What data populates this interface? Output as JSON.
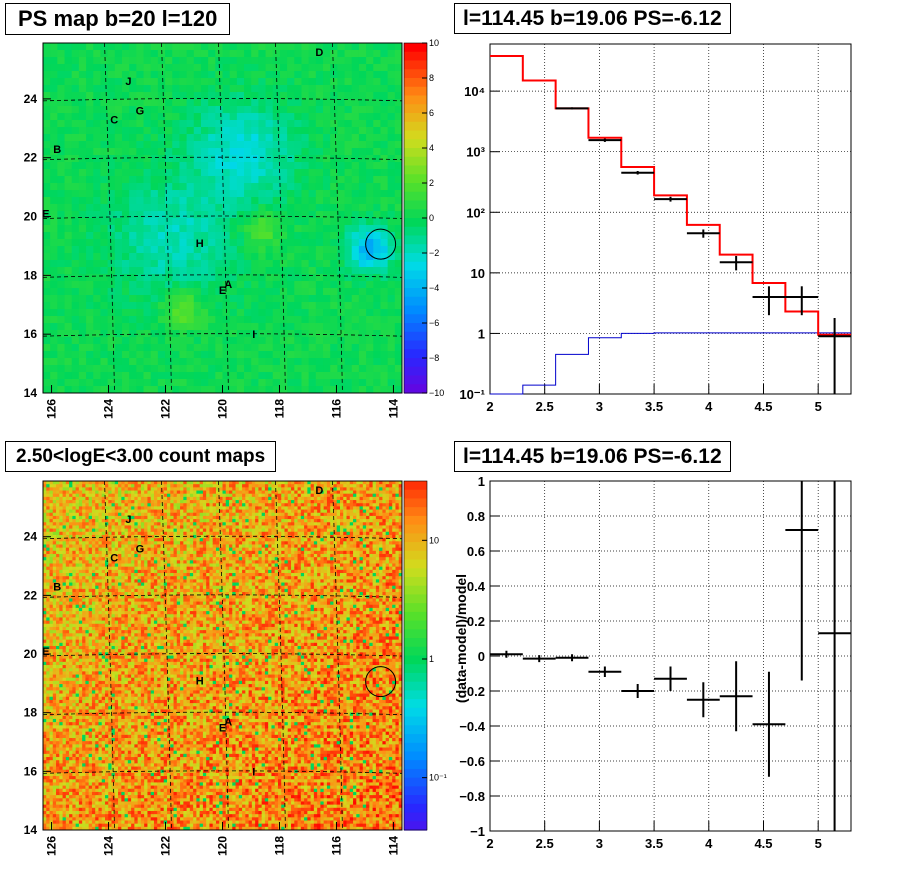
{
  "panels": {
    "ps_map": {
      "title": "PS map b=20 l=120",
      "x_ticks": [
        "126",
        "124",
        "122",
        "120",
        "118",
        "116",
        "114"
      ],
      "y_ticks": [
        "24",
        "22",
        "20",
        "18",
        "16",
        "14"
      ],
      "colorbar_ticks": [
        "10",
        "8",
        "6",
        "4",
        "2",
        "0",
        "−2",
        "−4",
        "−6",
        "−8",
        "−10"
      ],
      "markers": [
        "D",
        "J",
        "G",
        "C",
        "B",
        "E",
        "H",
        "A",
        "E",
        "I"
      ]
    },
    "spectrum": {
      "title": "l=114.45 b=19.06 PS=-6.12",
      "x_ticks": [
        "2",
        "2.5",
        "3",
        "3.5",
        "4",
        "4.5",
        "5"
      ],
      "y_ticks": [
        "10⁴",
        "10³",
        "10²",
        "10",
        "1",
        "10⁻¹"
      ]
    },
    "count_map": {
      "title": "2.50<logE<3.00 count maps",
      "x_ticks": [
        "126",
        "124",
        "122",
        "120",
        "118",
        "116",
        "114"
      ],
      "y_ticks": [
        "24",
        "22",
        "20",
        "18",
        "16",
        "14"
      ],
      "colorbar_ticks": [
        "10",
        "1",
        "10⁻¹"
      ],
      "markers": [
        "D",
        "J",
        "G",
        "C",
        "B",
        "E",
        "H",
        "A",
        "E",
        "I"
      ]
    },
    "residual": {
      "title": "l=114.45 b=19.06 PS=-6.12",
      "ylabel": "(data-model)/model",
      "x_ticks": [
        "2",
        "2.5",
        "3",
        "3.5",
        "4",
        "4.5",
        "5"
      ],
      "y_ticks": [
        "1",
        "0.8",
        "0.6",
        "0.4",
        "0.2",
        "0",
        "−0.2",
        "−0.4",
        "−0.6",
        "−0.8",
        "−1"
      ]
    }
  },
  "colors": {
    "model": "#ff0000",
    "background": "#0000cc",
    "data": "#000000"
  },
  "chart_data": [
    {
      "type": "heatmap",
      "title": "PS map b=20 l=120",
      "xlabel": "",
      "ylabel": "",
      "xlim": [
        126.3,
        113.7
      ],
      "ylim": [
        14,
        25.9
      ],
      "zlim": [
        -10,
        10
      ],
      "grid": true,
      "source_circle": {
        "l": 114.45,
        "b": 19.06
      },
      "labeled_sources": [
        {
          "name": "D",
          "l": 116.6,
          "b": 25.6
        },
        {
          "name": "J",
          "l": 123.3,
          "b": 24.6
        },
        {
          "name": "G",
          "l": 122.9,
          "b": 23.6
        },
        {
          "name": "C",
          "l": 123.8,
          "b": 23.3
        },
        {
          "name": "B",
          "l": 125.8,
          "b": 22.3
        },
        {
          "name": "E",
          "l": 126.2,
          "b": 20.1
        },
        {
          "name": "H",
          "l": 120.8,
          "b": 19.1
        },
        {
          "name": "A",
          "l": 119.8,
          "b": 17.7
        },
        {
          "name": "E",
          "l": 120.0,
          "b": 17.5
        },
        {
          "name": "I",
          "l": 118.9,
          "b": 16.0
        }
      ]
    },
    {
      "type": "line",
      "title": "l=114.45 b=19.06 PS=-6.12",
      "xlabel": "",
      "ylabel": "",
      "xlim": [
        2.0,
        5.3
      ],
      "ylim": [
        0.1,
        60000
      ],
      "yscale": "log",
      "grid": true,
      "bin_edges": [
        2.0,
        2.3,
        2.6,
        2.9,
        3.2,
        3.5,
        3.8,
        4.1,
        4.4,
        4.7,
        5.0,
        5.3
      ],
      "series": [
        {
          "name": "",
          "style": "step",
          "color": "#ff0000",
          "values": [
            38000,
            15000,
            5200,
            1700,
            560,
            190,
            62,
            20,
            6.8,
            2.3,
            0.95
          ]
        },
        {
          "name": "",
          "style": "step",
          "color": "#0000cc",
          "values": [
            0.1,
            0.14,
            0.45,
            0.85,
            1.0,
            1.02,
            1.02,
            1.02,
            1.02,
            1.02,
            1.02
          ]
        },
        {
          "name": "",
          "style": "errorbar",
          "color": "#000000",
          "points": [
            {
              "x": 2.75,
              "y": 5200,
              "lo": 5000,
              "hi": 5400,
              "xerr": 0.15
            },
            {
              "x": 3.05,
              "y": 1550,
              "lo": 1450,
              "hi": 1650,
              "xerr": 0.15
            },
            {
              "x": 3.35,
              "y": 450,
              "lo": 420,
              "hi": 480,
              "xerr": 0.15
            },
            {
              "x": 3.65,
              "y": 165,
              "lo": 150,
              "hi": 180,
              "xerr": 0.15
            },
            {
              "x": 3.95,
              "y": 45,
              "lo": 38,
              "hi": 52,
              "xerr": 0.15
            },
            {
              "x": 4.25,
              "y": 15,
              "lo": 11,
              "hi": 19,
              "xerr": 0.15
            },
            {
              "x": 4.55,
              "y": 4,
              "lo": 2,
              "hi": 6,
              "xerr": 0.15
            },
            {
              "x": 4.85,
              "y": 4,
              "lo": 2,
              "hi": 6,
              "xerr": 0.15
            },
            {
              "x": 5.15,
              "y": 0.9,
              "lo": 0.1,
              "hi": 1.8,
              "xerr": 0.15
            }
          ]
        }
      ]
    },
    {
      "type": "heatmap",
      "title": "2.50<logE<3.00 count maps",
      "xlabel": "",
      "ylabel": "",
      "xlim": [
        126.3,
        113.7
      ],
      "ylim": [
        14,
        25.9
      ],
      "zlim": [
        0.05,
        40
      ],
      "zscale": "log",
      "grid": true,
      "source_circle": {
        "l": 114.45,
        "b": 19.06
      }
    },
    {
      "type": "scatter",
      "title": "l=114.45 b=19.06 PS=-6.12",
      "xlabel": "",
      "ylabel": "(data-model)/model",
      "xlim": [
        2.0,
        5.3
      ],
      "ylim": [
        -1,
        1
      ],
      "grid": true,
      "points": [
        {
          "x": 2.15,
          "y": 0.01,
          "lo": -0.01,
          "hi": 0.03,
          "xerr": 0.15
        },
        {
          "x": 2.45,
          "y": -0.015,
          "lo": -0.035,
          "hi": 0.005,
          "xerr": 0.15
        },
        {
          "x": 2.75,
          "y": -0.01,
          "lo": -0.03,
          "hi": 0.01,
          "xerr": 0.15
        },
        {
          "x": 3.05,
          "y": -0.09,
          "lo": -0.12,
          "hi": -0.06,
          "xerr": 0.15
        },
        {
          "x": 3.35,
          "y": -0.2,
          "lo": -0.24,
          "hi": -0.16,
          "xerr": 0.15
        },
        {
          "x": 3.65,
          "y": -0.13,
          "lo": -0.2,
          "hi": -0.06,
          "xerr": 0.15
        },
        {
          "x": 3.95,
          "y": -0.25,
          "lo": -0.35,
          "hi": -0.15,
          "xerr": 0.15
        },
        {
          "x": 4.25,
          "y": -0.23,
          "lo": -0.43,
          "hi": -0.03,
          "xerr": 0.15
        },
        {
          "x": 4.55,
          "y": -0.39,
          "lo": -0.69,
          "hi": -0.09,
          "xerr": 0.15
        },
        {
          "x": 4.85,
          "y": 0.72,
          "lo": -0.14,
          "hi": 1.0,
          "xerr": 0.15
        },
        {
          "x": 5.15,
          "y": 0.13,
          "lo": -1.0,
          "hi": 1.0,
          "xerr": 0.15
        }
      ]
    }
  ]
}
